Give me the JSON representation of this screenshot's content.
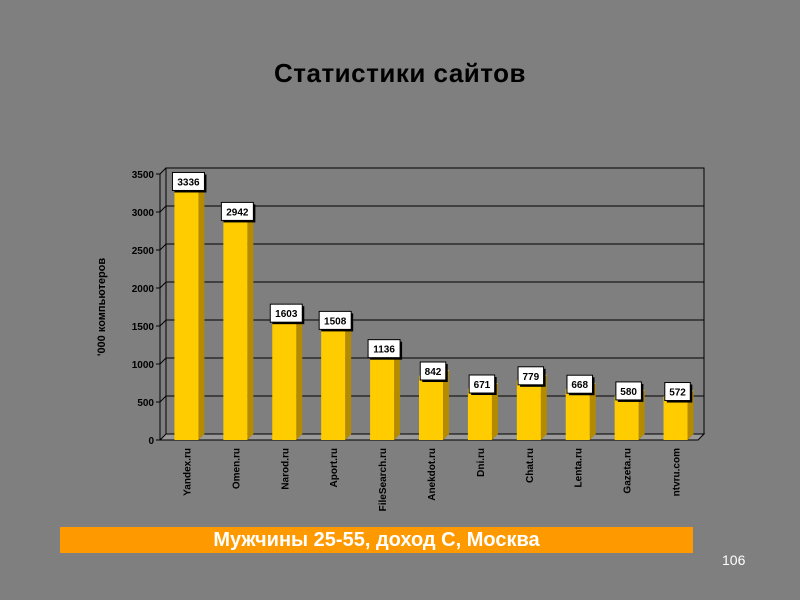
{
  "slide": {
    "title": "Статистики сайтов",
    "banner": "Мужчины 25-55, доход С, Москва",
    "page_number": "106"
  },
  "colors": {
    "background": "#7f7f7f",
    "bar_front": "#ffcc00",
    "bar_side": "#b38a00",
    "bar_top": "#ffe066",
    "banner": "#ff9900"
  },
  "chart_data": {
    "type": "bar",
    "title": "",
    "xlabel": "",
    "ylabel": "'000 компьютеров",
    "ylim": [
      0,
      3500
    ],
    "yticks": [
      0,
      500,
      1000,
      1500,
      2000,
      2500,
      3000,
      3500
    ],
    "grid": true,
    "categories": [
      "Yandex.ru",
      "Omen.ru",
      "Narod.ru",
      "Aport.ru",
      "FileSearch.ru",
      "Anekdot.ru",
      "Dni.ru",
      "Chat.ru",
      "Lenta.ru",
      "Gazeta.ru",
      "ntvru.com"
    ],
    "values": [
      3336,
      2942,
      1603,
      1508,
      1136,
      842,
      671,
      779,
      668,
      580,
      572
    ],
    "data_labels": [
      "3336",
      "2942",
      "1603",
      "1508",
      "1136",
      "842",
      "671",
      "779",
      "668",
      "580",
      "572"
    ]
  }
}
